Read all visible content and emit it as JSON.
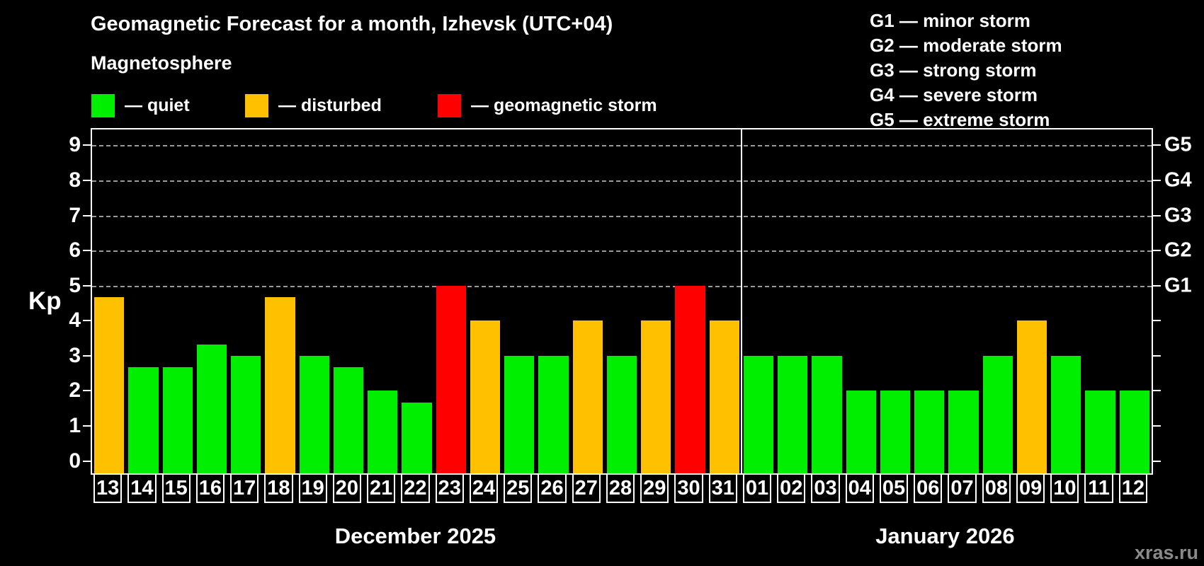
{
  "header": {
    "title": "Geomagnetic Forecast for a month, Izhevsk (UTC+04)",
    "subtitle": "Magnetosphere"
  },
  "legend": {
    "items": [
      {
        "label": "— quiet",
        "status": "quiet",
        "color": "#00ee00"
      },
      {
        "label": "— disturbed",
        "status": "disturbed",
        "color": "#ffc000"
      },
      {
        "label": "— geomagnetic storm",
        "status": "storm",
        "color": "#ff0000"
      }
    ]
  },
  "g_legend": {
    "items": [
      "G1 — minor storm",
      "G2 — moderate storm",
      "G3 — strong storm",
      "G4 — severe storm",
      "G5 — extreme storm"
    ]
  },
  "watermark": "xras.ru",
  "chart_data": {
    "type": "bar",
    "title": "Geomagnetic Forecast for a month, Izhevsk (UTC+04)",
    "subtitle": "Magnetosphere",
    "ylabel": "Kp",
    "ylim": [
      -0.35,
      9.45
    ],
    "yticks": [
      0,
      1,
      2,
      3,
      4,
      5,
      6,
      7,
      8,
      9
    ],
    "grid_levels": [
      5,
      6,
      7,
      8,
      9
    ],
    "grid_style": "dashed",
    "legend_position": "top",
    "right_axis_labels": [
      {
        "label": "G1",
        "kp": 5
      },
      {
        "label": "G2",
        "kp": 6
      },
      {
        "label": "G3",
        "kp": 7
      },
      {
        "label": "G4",
        "kp": 8
      },
      {
        "label": "G5",
        "kp": 9
      }
    ],
    "status_colors": {
      "quiet": "#00ee00",
      "disturbed": "#ffc000",
      "storm": "#ff0000"
    },
    "groups": [
      {
        "label": "December 2025",
        "days": [
          {
            "d": "13",
            "kp": 4.67,
            "status": "disturbed"
          },
          {
            "d": "14",
            "kp": 2.67,
            "status": "quiet"
          },
          {
            "d": "15",
            "kp": 2.67,
            "status": "quiet"
          },
          {
            "d": "16",
            "kp": 3.33,
            "status": "quiet"
          },
          {
            "d": "17",
            "kp": 3,
            "status": "quiet"
          },
          {
            "d": "18",
            "kp": 4.67,
            "status": "disturbed"
          },
          {
            "d": "19",
            "kp": 3,
            "status": "quiet"
          },
          {
            "d": "20",
            "kp": 2.67,
            "status": "quiet"
          },
          {
            "d": "21",
            "kp": 2,
            "status": "quiet"
          },
          {
            "d": "22",
            "kp": 1.67,
            "status": "quiet"
          },
          {
            "d": "23",
            "kp": 5,
            "status": "storm"
          },
          {
            "d": "24",
            "kp": 4,
            "status": "disturbed"
          },
          {
            "d": "25",
            "kp": 3,
            "status": "quiet"
          },
          {
            "d": "26",
            "kp": 3,
            "status": "quiet"
          },
          {
            "d": "27",
            "kp": 4,
            "status": "disturbed"
          },
          {
            "d": "28",
            "kp": 3,
            "status": "quiet"
          },
          {
            "d": "29",
            "kp": 4,
            "status": "disturbed"
          },
          {
            "d": "30",
            "kp": 5,
            "status": "storm"
          },
          {
            "d": "31",
            "kp": 4,
            "status": "disturbed"
          }
        ]
      },
      {
        "label": "January 2026",
        "days": [
          {
            "d": "01",
            "kp": 3,
            "status": "quiet"
          },
          {
            "d": "02",
            "kp": 3,
            "status": "quiet"
          },
          {
            "d": "03",
            "kp": 3,
            "status": "quiet"
          },
          {
            "d": "04",
            "kp": 2,
            "status": "quiet"
          },
          {
            "d": "05",
            "kp": 2,
            "status": "quiet"
          },
          {
            "d": "06",
            "kp": 2,
            "status": "quiet"
          },
          {
            "d": "07",
            "kp": 2,
            "status": "quiet"
          },
          {
            "d": "08",
            "kp": 3,
            "status": "quiet"
          },
          {
            "d": "09",
            "kp": 4,
            "status": "disturbed"
          },
          {
            "d": "10",
            "kp": 3,
            "status": "quiet"
          },
          {
            "d": "11",
            "kp": 2,
            "status": "quiet"
          },
          {
            "d": "12",
            "kp": 2,
            "status": "quiet"
          }
        ]
      }
    ]
  }
}
